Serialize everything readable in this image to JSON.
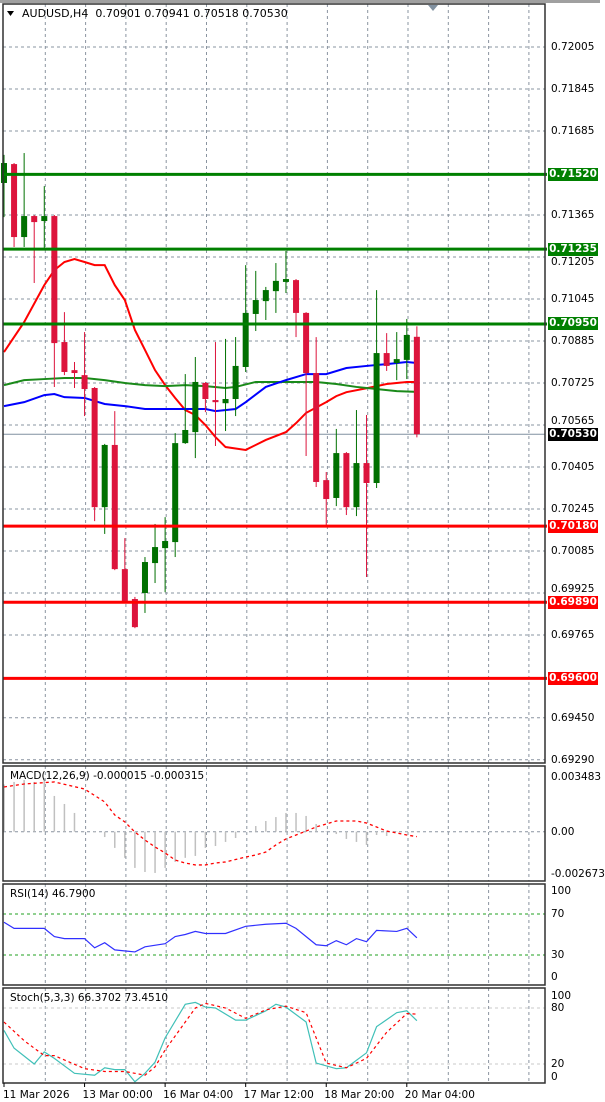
{
  "chart_data": {
    "type": "candlestick",
    "symbol": "AUDUSD,H4",
    "ohlc_readout": "0.70901 0.70941 0.70518 0.70530",
    "colors": {
      "bull": "#007000",
      "bear": "#dc143c",
      "ma_red": "#ff0000",
      "ma_green": "#1a8a1a",
      "ma_blue": "#0000ff",
      "grid": "#8a94a0"
    },
    "ylim": [
      0.69255,
      0.7216
    ],
    "y_tick_labels": [
      "0.72005",
      "0.71845",
      "0.71685",
      "0.71365",
      "0.71205",
      "0.71045",
      "0.70885",
      "0.70725",
      "0.70565",
      "0.70405",
      "0.70245",
      "0.70085",
      "0.69925",
      "0.69765",
      "0.69450",
      "0.69290"
    ],
    "x_tick_labels": [
      {
        "bar": 0,
        "label": "11 Mar 2026"
      },
      {
        "bar": 8,
        "label": "13 Mar 00:00"
      },
      {
        "bar": 16,
        "label": "16 Mar 04:00"
      },
      {
        "bar": 24,
        "label": "17 Mar 12:00"
      },
      {
        "bar": 32,
        "label": "18 Mar 20:00"
      },
      {
        "bar": 40,
        "label": "20 Mar 04:00"
      }
    ],
    "candles_ohlc": [
      [
        0.71487,
        0.71594,
        0.71357,
        0.71563
      ],
      [
        0.71559,
        0.71563,
        0.71243,
        0.71281
      ],
      [
        0.71281,
        0.71601,
        0.71243,
        0.71361
      ],
      [
        0.71361,
        0.71365,
        0.71106,
        0.71338
      ],
      [
        0.71342,
        0.71475,
        0.71232,
        0.71361
      ],
      [
        0.71361,
        0.71365,
        0.7071,
        0.70877
      ],
      [
        0.70881,
        0.70995,
        0.70755,
        0.70767
      ],
      [
        0.70774,
        0.70805,
        0.70706,
        0.70763
      ],
      [
        0.70755,
        0.70919,
        0.70599,
        0.70702
      ],
      [
        0.70706,
        0.7071,
        0.70199,
        0.70252
      ],
      [
        0.70252,
        0.70493,
        0.7015,
        0.70489
      ],
      [
        0.70489,
        0.70618,
        0.70012,
        0.70016
      ],
      [
        0.70016,
        0.70134,
        0.6989,
        0.6989
      ],
      [
        0.69902,
        0.6991,
        0.69791,
        0.69795
      ],
      [
        0.69925,
        0.70062,
        0.69849,
        0.70043
      ],
      [
        0.70039,
        0.70188,
        0.69963,
        0.701
      ],
      [
        0.70096,
        0.70214,
        0.69928,
        0.70123
      ],
      [
        0.70119,
        0.70534,
        0.70062,
        0.70496
      ],
      [
        0.70496,
        0.70759,
        0.70493,
        0.70546
      ],
      [
        0.70538,
        0.70824,
        0.70439,
        0.70729
      ],
      [
        0.70725,
        0.70729,
        0.70614,
        0.70664
      ],
      [
        0.7066,
        0.70881,
        0.70485,
        0.70652
      ],
      [
        0.70648,
        0.70893,
        0.70542,
        0.70664
      ],
      [
        0.70664,
        0.709,
        0.70599,
        0.7079
      ],
      [
        0.70786,
        0.71174,
        0.70767,
        0.70992
      ],
      [
        0.70988,
        0.71152,
        0.70923,
        0.71041
      ],
      [
        0.71037,
        0.71091,
        0.70965,
        0.71079
      ],
      [
        0.71075,
        0.71182,
        0.70992,
        0.71114
      ],
      [
        0.7111,
        0.71228,
        0.71068,
        0.71121
      ],
      [
        0.71117,
        0.71121,
        0.709,
        0.70992
      ],
      [
        0.70992,
        0.70995,
        0.70447,
        0.70763
      ],
      [
        0.70763,
        0.709,
        0.70329,
        0.70348
      ],
      [
        0.70355,
        0.70386,
        0.70184,
        0.70283
      ],
      [
        0.70287,
        0.7055,
        0.70256,
        0.70458
      ],
      [
        0.70458,
        0.70462,
        0.70222,
        0.70252
      ],
      [
        0.70252,
        0.70622,
        0.70218,
        0.7042
      ],
      [
        0.7042,
        0.70603,
        0.69986,
        0.70344
      ],
      [
        0.70344,
        0.71079,
        0.70325,
        0.70839
      ],
      [
        0.70839,
        0.70915,
        0.70771,
        0.7079
      ],
      [
        0.70801,
        0.70919,
        0.70736,
        0.70816
      ],
      [
        0.70813,
        0.70969,
        0.7074,
        0.70908
      ],
      [
        0.70901,
        0.70941,
        0.70518,
        0.7053
      ]
    ],
    "moving_averages": [
      {
        "color": "#ff0000",
        "points": [
          [
            0,
            0.70843
          ],
          [
            2,
            0.70957
          ],
          [
            4,
            0.71098
          ],
          [
            5,
            0.71155
          ],
          [
            6,
            0.71186
          ],
          [
            7,
            0.71197
          ],
          [
            8,
            0.71186
          ],
          [
            9,
            0.71174
          ],
          [
            10,
            0.71174
          ],
          [
            11,
            0.71098
          ],
          [
            12,
            0.71041
          ],
          [
            13,
            0.70927
          ],
          [
            14,
            0.70851
          ],
          [
            15,
            0.70774
          ],
          [
            16,
            0.70717
          ],
          [
            17,
            0.70668
          ],
          [
            18,
            0.70622
          ],
          [
            19,
            0.70603
          ],
          [
            20,
            0.70565
          ],
          [
            21,
            0.70519
          ],
          [
            22,
            0.70481
          ],
          [
            24,
            0.7047
          ],
          [
            26,
            0.70508
          ],
          [
            28,
            0.70538
          ],
          [
            29,
            0.70572
          ],
          [
            30,
            0.70611
          ],
          [
            32,
            0.70652
          ],
          [
            33,
            0.70675
          ],
          [
            34,
            0.7069
          ],
          [
            36,
            0.70705
          ],
          [
            38,
            0.70721
          ],
          [
            40,
            0.70729
          ],
          [
            41,
            0.70729
          ]
        ]
      },
      {
        "color": "#1a8a1a",
        "points": [
          [
            0,
            0.70717
          ],
          [
            2,
            0.70736
          ],
          [
            4,
            0.7074
          ],
          [
            6,
            0.70744
          ],
          [
            8,
            0.70744
          ],
          [
            10,
            0.70736
          ],
          [
            12,
            0.70725
          ],
          [
            14,
            0.70717
          ],
          [
            16,
            0.70713
          ],
          [
            18,
            0.70717
          ],
          [
            20,
            0.70713
          ],
          [
            22,
            0.70706
          ],
          [
            23,
            0.7071
          ],
          [
            25,
            0.70729
          ],
          [
            27,
            0.70729
          ],
          [
            29,
            0.70729
          ],
          [
            31,
            0.70729
          ],
          [
            33,
            0.70721
          ],
          [
            35,
            0.7071
          ],
          [
            37,
            0.70702
          ],
          [
            39,
            0.70694
          ],
          [
            41,
            0.70691
          ]
        ]
      },
      {
        "color": "#0000ff",
        "points": [
          [
            0,
            0.70637
          ],
          [
            2,
            0.70652
          ],
          [
            4,
            0.70679
          ],
          [
            5,
            0.70683
          ],
          [
            6,
            0.70671
          ],
          [
            8,
            0.70668
          ],
          [
            10,
            0.70645
          ],
          [
            12,
            0.70637
          ],
          [
            14,
            0.70626
          ],
          [
            16,
            0.70626
          ],
          [
            18,
            0.70626
          ],
          [
            20,
            0.70626
          ],
          [
            21,
            0.70618
          ],
          [
            23,
            0.70626
          ],
          [
            24,
            0.70652
          ],
          [
            26,
            0.7071
          ],
          [
            28,
            0.70736
          ],
          [
            30,
            0.70759
          ],
          [
            32,
            0.70759
          ],
          [
            34,
            0.70782
          ],
          [
            36,
            0.7079
          ],
          [
            38,
            0.70797
          ],
          [
            40,
            0.70805
          ],
          [
            41,
            0.70801
          ]
        ]
      }
    ],
    "levels": [
      {
        "label": "0.71520",
        "color": "#008000"
      },
      {
        "label": "0.71235",
        "color": "#008000"
      },
      {
        "label": "0.70950",
        "color": "#008000"
      },
      {
        "label": "0.70180",
        "color": "#ff0000"
      },
      {
        "label": "0.69890",
        "color": "#ff0000"
      },
      {
        "label": "0.69600",
        "color": "#ff0000"
      }
    ],
    "current_price": {
      "label": "0.70530",
      "color": "#000000"
    },
    "macd": {
      "label": "MACD(12,26,9) -0.000015 -0.000315",
      "ticks": [
        "0.003483",
        "0.00",
        "-0.002673"
      ],
      "ylim": [
        -0.002673,
        0.003483
      ],
      "histogram": [
        0.003,
        0.00316,
        0.00328,
        0.00316,
        0.00341,
        0.00227,
        0.00176,
        0.00119,
        2e-05,
        -5e-05,
        -0.00034,
        -0.00103,
        -0.00166,
        -0.0023,
        -0.00256,
        -0.00262,
        -0.0023,
        -0.00192,
        -0.00166,
        -0.00154,
        -0.00103,
        -0.00091,
        -0.00065,
        -0.0004,
        0.0,
        0.00036,
        0.00068,
        0.00093,
        0.00119,
        0.00119,
        0.001,
        0.00049,
        4e-05,
        -0.00015,
        -0.00046,
        -0.00065,
        -0.00084,
        -0.00021,
        -0.00027,
        -2e-05,
        -2e-05,
        -1.5e-05
      ],
      "signal": [
        [
          0,
          0.00284
        ],
        [
          2,
          0.00303
        ],
        [
          5,
          0.00316
        ],
        [
          8,
          0.00271
        ],
        [
          10,
          0.00189
        ],
        [
          11,
          0.00106
        ],
        [
          12,
          0.00062
        ],
        [
          13,
          -2e-05
        ],
        [
          14,
          -0.00053
        ],
        [
          15,
          -0.00097
        ],
        [
          16,
          -0.00135
        ],
        [
          17,
          -0.0018
        ],
        [
          18,
          -0.00199
        ],
        [
          19,
          -0.00211
        ],
        [
          20,
          -0.00211
        ],
        [
          21,
          -0.00199
        ],
        [
          22,
          -0.00192
        ],
        [
          24,
          -0.00161
        ],
        [
          25,
          -0.00148
        ],
        [
          26,
          -0.00129
        ],
        [
          27,
          -0.00084
        ],
        [
          28,
          -0.00046
        ],
        [
          29,
          -0.00021
        ],
        [
          30,
          4e-05
        ],
        [
          31,
          0.0003
        ],
        [
          32,
          0.00049
        ],
        [
          33,
          0.00068
        ],
        [
          34,
          0.00068
        ],
        [
          35,
          0.00068
        ],
        [
          36,
          0.00055
        ],
        [
          37,
          0.0003
        ],
        [
          38,
          4e-05
        ],
        [
          39,
          -8e-05
        ],
        [
          40,
          -0.00021
        ],
        [
          41,
          -0.000315
        ]
      ]
    },
    "rsi": {
      "label": "RSI(14) 46.7900",
      "ticks": [
        "100",
        "70",
        "30",
        "0"
      ],
      "levels": [
        70,
        30
      ],
      "values": [
        [
          0,
          62
        ],
        [
          1,
          56
        ],
        [
          4,
          56
        ],
        [
          5,
          48
        ],
        [
          6,
          46
        ],
        [
          8,
          46
        ],
        [
          9,
          37
        ],
        [
          10,
          42
        ],
        [
          11,
          35
        ],
        [
          13,
          33
        ],
        [
          14,
          38
        ],
        [
          16,
          41
        ],
        [
          17,
          48
        ],
        [
          18,
          50
        ],
        [
          19,
          53
        ],
        [
          20,
          51
        ],
        [
          22,
          51
        ],
        [
          24,
          58
        ],
        [
          26,
          60
        ],
        [
          28,
          61
        ],
        [
          29,
          56
        ],
        [
          31,
          40
        ],
        [
          32,
          39
        ],
        [
          33,
          44
        ],
        [
          34,
          40
        ],
        [
          35,
          46
        ],
        [
          36,
          43
        ],
        [
          37,
          54
        ],
        [
          39,
          53
        ],
        [
          40,
          56
        ],
        [
          41,
          46.79
        ]
      ]
    },
    "stoch": {
      "label": "Stoch(5,3,3) 66.3702 73.4510",
      "ticks": [
        "100",
        "80",
        "20",
        "0"
      ],
      "levels": [
        80,
        20
      ],
      "k": [
        [
          0,
          56
        ],
        [
          1,
          37
        ],
        [
          3,
          20
        ],
        [
          4,
          33
        ],
        [
          5,
          26
        ],
        [
          7,
          10
        ],
        [
          9,
          8
        ],
        [
          10,
          16
        ],
        [
          11,
          14
        ],
        [
          12,
          14
        ],
        [
          13,
          1
        ],
        [
          14,
          10
        ],
        [
          15,
          22
        ],
        [
          16,
          48
        ],
        [
          18,
          84
        ],
        [
          19,
          86
        ],
        [
          20,
          81
        ],
        [
          21,
          80
        ],
        [
          23,
          67
        ],
        [
          24,
          67
        ],
        [
          26,
          77
        ],
        [
          27,
          84
        ],
        [
          28,
          81
        ],
        [
          30,
          65
        ],
        [
          31,
          21
        ],
        [
          33,
          15
        ],
        [
          34,
          16
        ],
        [
          36,
          32
        ],
        [
          37,
          60
        ],
        [
          39,
          75
        ],
        [
          40,
          77
        ],
        [
          41,
          66.37
        ]
      ],
      "d": [
        [
          0,
          65
        ],
        [
          2,
          45
        ],
        [
          4,
          29
        ],
        [
          5,
          29
        ],
        [
          8,
          15
        ],
        [
          10,
          12
        ],
        [
          12,
          12
        ],
        [
          14,
          8
        ],
        [
          15,
          17
        ],
        [
          16,
          35
        ],
        [
          18,
          65
        ],
        [
          19,
          80
        ],
        [
          20,
          85
        ],
        [
          22,
          80
        ],
        [
          24,
          69
        ],
        [
          26,
          78
        ],
        [
          28,
          82
        ],
        [
          30,
          75
        ],
        [
          32,
          21
        ],
        [
          34,
          16
        ],
        [
          36,
          26
        ],
        [
          38,
          54
        ],
        [
          40,
          74
        ],
        [
          41,
          73.45
        ]
      ]
    }
  }
}
